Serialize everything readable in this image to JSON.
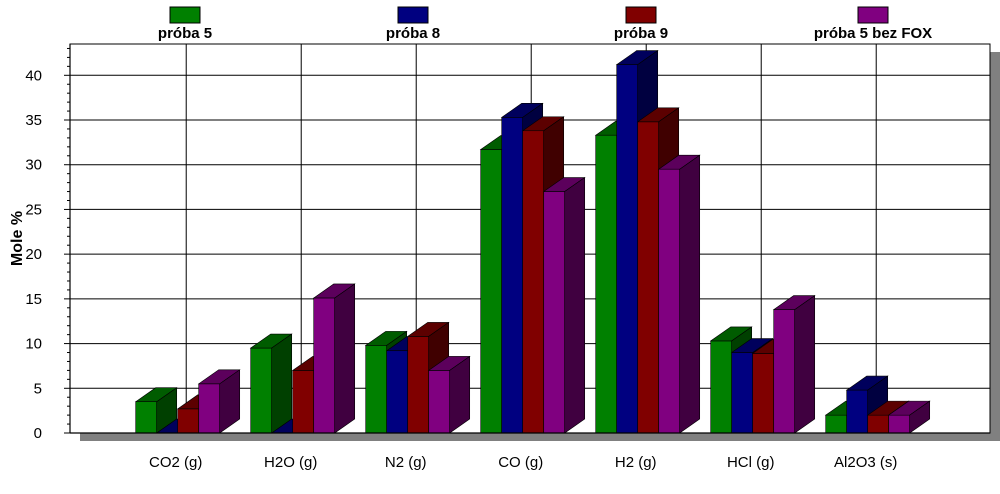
{
  "chart_data": {
    "type": "bar",
    "style": "3d-clustered",
    "ylabel": "Mole %",
    "xlabel": "",
    "ylim": [
      0,
      43.5
    ],
    "y_ticks": [
      0,
      5,
      10,
      15,
      20,
      25,
      30,
      35,
      40
    ],
    "grid": true,
    "legend_position": "top",
    "categories": [
      "CO2 (g)",
      "H2O (g)",
      "N2 (g)",
      "CO (g)",
      "H2 (g)",
      "HCl (g)",
      "Al2O3 (s)"
    ],
    "series": [
      {
        "name": "próba 5",
        "color": "#008000",
        "values": [
          3.5,
          9.5,
          9.8,
          31.7,
          33.3,
          10.3,
          2.0
        ]
      },
      {
        "name": "próba 8",
        "color": "#000080",
        "values": [
          0.0,
          0.0,
          9.2,
          35.3,
          41.2,
          9.0,
          4.8
        ]
      },
      {
        "name": "próba 9",
        "color": "#800000",
        "values": [
          2.7,
          7.0,
          10.8,
          33.8,
          34.8,
          8.9,
          2.0
        ]
      },
      {
        "name": "próba 5 bez FOX",
        "color": "#800080",
        "values": [
          5.5,
          15.1,
          7.0,
          27.0,
          29.5,
          13.8,
          2.0
        ]
      }
    ]
  }
}
